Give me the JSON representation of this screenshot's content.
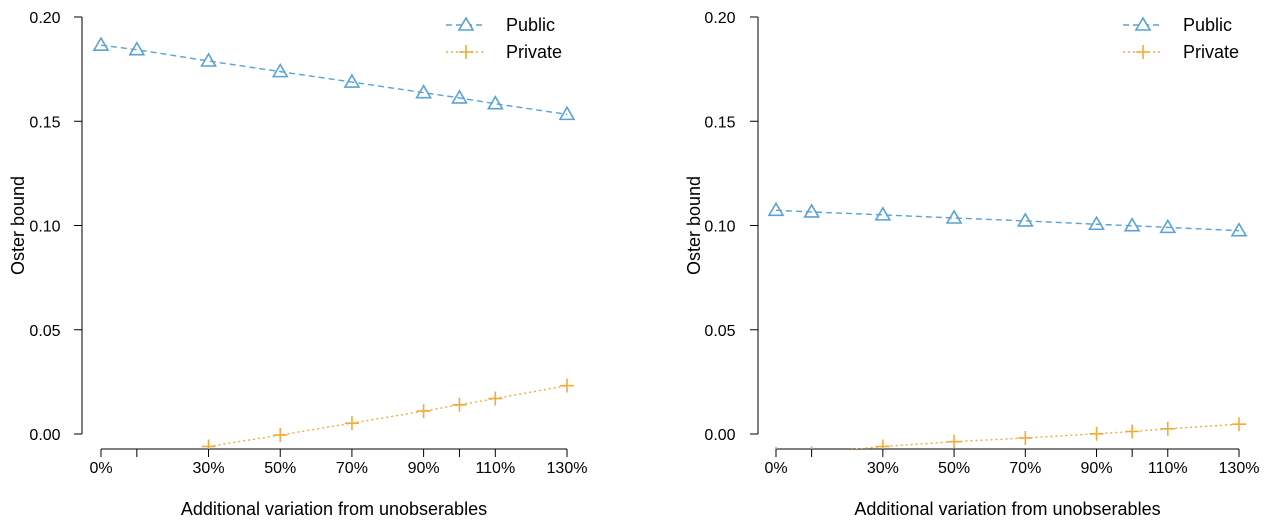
{
  "chart_data": [
    {
      "type": "line",
      "xlabel": "Additional variation from unobserables",
      "ylabel": "Oster bound",
      "x": [
        0,
        10,
        30,
        50,
        70,
        90,
        100,
        110,
        130
      ],
      "x_ticks": [
        0,
        10,
        30,
        50,
        70,
        90,
        100,
        110,
        130
      ],
      "x_tick_labels": [
        "0%",
        "",
        "30%",
        "50%",
        "70%",
        "90%",
        "",
        "110%",
        "130%"
      ],
      "y_ticks": [
        0.0,
        0.05,
        0.1,
        0.15,
        0.2
      ],
      "y_tick_labels": [
        "0.00",
        "0.05",
        "0.10",
        "0.15",
        "0.20"
      ],
      "ylim": [
        0.0,
        0.2
      ],
      "legend_position": "top-right",
      "grid": false,
      "series": [
        {
          "name": "Public",
          "color": "#5aa2d6",
          "marker": "triangle",
          "line_style": "dashed",
          "values": [
            0.1865,
            0.1843,
            0.1789,
            0.1738,
            0.1688,
            0.1637,
            0.1612,
            0.1584,
            0.1533
          ]
        },
        {
          "name": "Private",
          "color": "#f5a93a",
          "marker": "plus",
          "line_style": "dotted",
          "values": [
            null,
            null,
            -0.006,
            -0.0005,
            0.0052,
            0.011,
            0.014,
            0.017,
            0.0232
          ]
        }
      ]
    },
    {
      "type": "line",
      "xlabel": "Additional variation from unobserables",
      "ylabel": "Oster bound",
      "x": [
        0,
        10,
        30,
        50,
        70,
        90,
        100,
        110,
        130
      ],
      "x_ticks": [
        0,
        10,
        30,
        50,
        70,
        90,
        100,
        110,
        130
      ],
      "x_tick_labels": [
        "0%",
        "",
        "30%",
        "50%",
        "70%",
        "90%",
        "",
        "110%",
        "130%"
      ],
      "y_ticks": [
        0.0,
        0.05,
        0.1,
        0.15,
        0.2
      ],
      "y_tick_labels": [
        "0.00",
        "0.05",
        "0.10",
        "0.15",
        "0.20"
      ],
      "ylim": [
        0.0,
        0.2
      ],
      "legend_position": "top-right",
      "grid": false,
      "series": [
        {
          "name": "Public",
          "color": "#5aa2d6",
          "marker": "triangle",
          "line_style": "dashed",
          "values": [
            0.1073,
            0.1065,
            0.1051,
            0.1036,
            0.1022,
            0.1006,
            0.0999,
            0.0991,
            0.0975
          ]
        },
        {
          "name": "Private",
          "color": "#f5a93a",
          "marker": "plus",
          "line_style": "dotted",
          "values": [
            -0.0095,
            -0.0093,
            -0.006,
            -0.0037,
            -0.0019,
            0.0001,
            0.0012,
            0.0025,
            0.0047
          ]
        }
      ]
    }
  ]
}
